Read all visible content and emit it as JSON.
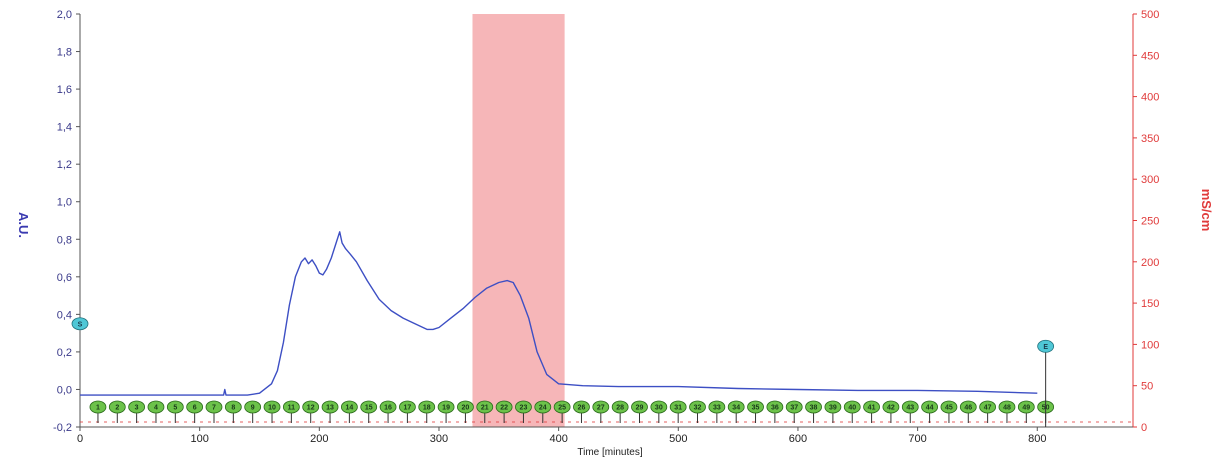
{
  "colors": {
    "absorbance_line": "#3d4fc4",
    "conductivity_axis": "#e03a3a",
    "left_axis": "#3a3a8a",
    "highlight": "#f5aeb0",
    "fraction_fill": "#6cc24a",
    "fraction_stroke": "#2a6a1a",
    "marker_fill": "#4fc7d6"
  },
  "chart_data": {
    "type": "line",
    "title": "",
    "xlabel": "Time [minutes]",
    "ylabel_left": "A.U.",
    "ylabel_right": "mS/cm",
    "xlim": [
      0,
      880
    ],
    "ylim_left": [
      -0.2,
      2.0
    ],
    "ylim_right": [
      0,
      500
    ],
    "x_ticks": [
      "0",
      "100",
      "200",
      "300",
      "400",
      "500",
      "600",
      "700",
      "800"
    ],
    "y_ticks_left": [
      "-0,2",
      "0,0",
      "0,2",
      "0,4",
      "0,6",
      "0,8",
      "1,0",
      "1,2",
      "1,4",
      "1,6",
      "1,8",
      "2,0"
    ],
    "y_ticks_right": [
      "0",
      "50",
      "100",
      "150",
      "200",
      "250",
      "300",
      "350",
      "400",
      "450",
      "500"
    ],
    "highlight_region": {
      "x_start": 328,
      "x_end": 405
    },
    "series": [
      {
        "axis": "left",
        "points": [
          [
            0,
            -0.03
          ],
          [
            120,
            -0.03
          ],
          [
            121,
            0.0
          ],
          [
            122,
            -0.03
          ],
          [
            140,
            -0.03
          ],
          [
            150,
            -0.02
          ],
          [
            160,
            0.03
          ],
          [
            165,
            0.1
          ],
          [
            170,
            0.25
          ],
          [
            175,
            0.45
          ],
          [
            180,
            0.6
          ],
          [
            185,
            0.68
          ],
          [
            188,
            0.7
          ],
          [
            191,
            0.67
          ],
          [
            194,
            0.69
          ],
          [
            197,
            0.66
          ],
          [
            200,
            0.62
          ],
          [
            203,
            0.61
          ],
          [
            206,
            0.64
          ],
          [
            210,
            0.7
          ],
          [
            214,
            0.78
          ],
          [
            217,
            0.84
          ],
          [
            219,
            0.78
          ],
          [
            222,
            0.75
          ],
          [
            226,
            0.72
          ],
          [
            231,
            0.68
          ],
          [
            240,
            0.58
          ],
          [
            250,
            0.48
          ],
          [
            260,
            0.42
          ],
          [
            270,
            0.38
          ],
          [
            280,
            0.35
          ],
          [
            290,
            0.32
          ],
          [
            295,
            0.32
          ],
          [
            300,
            0.33
          ],
          [
            310,
            0.38
          ],
          [
            320,
            0.43
          ],
          [
            330,
            0.49
          ],
          [
            340,
            0.54
          ],
          [
            350,
            0.57
          ],
          [
            357,
            0.58
          ],
          [
            362,
            0.57
          ],
          [
            368,
            0.5
          ],
          [
            375,
            0.38
          ],
          [
            382,
            0.2
          ],
          [
            390,
            0.08
          ],
          [
            400,
            0.03
          ],
          [
            420,
            0.02
          ],
          [
            450,
            0.015
          ],
          [
            500,
            0.015
          ],
          [
            550,
            0.005
          ],
          [
            600,
            0.0
          ],
          [
            650,
            -0.005
          ],
          [
            700,
            -0.005
          ],
          [
            750,
            -0.01
          ],
          [
            800,
            -0.02
          ]
        ]
      }
    ],
    "fractions": {
      "labels": [
        "1",
        "2",
        "3",
        "4",
        "5",
        "6",
        "7",
        "8",
        "9",
        "10",
        "11",
        "12",
        "13",
        "14",
        "15",
        "16",
        "17",
        "18",
        "19",
        "20",
        "21",
        "22",
        "23",
        "24",
        "25",
        "26",
        "27",
        "28",
        "29",
        "30",
        "31",
        "32",
        "33",
        "34",
        "35",
        "36",
        "37",
        "38",
        "39",
        "40",
        "41",
        "42",
        "43",
        "44",
        "45",
        "46",
        "47",
        "48",
        "49",
        "50"
      ],
      "x_start": 15,
      "x_end": 807
    },
    "markers": [
      {
        "label": "S",
        "x": 0,
        "y": 0.35
      },
      {
        "label": "E",
        "x": 807,
        "y": 0.23
      }
    ]
  }
}
